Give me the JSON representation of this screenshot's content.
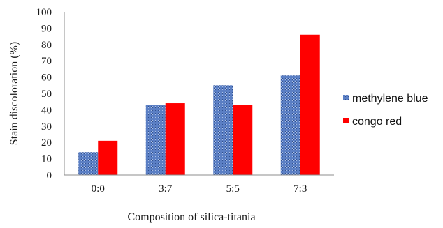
{
  "chart_data": {
    "type": "bar",
    "categories": [
      "0:0",
      "3:7",
      "5:5",
      "7:3"
    ],
    "series": [
      {
        "name": "methylene blue",
        "values": [
          14,
          43,
          55,
          61
        ],
        "color": "#4a6fb5",
        "pattern": "textured-dots"
      },
      {
        "name": "congo red",
        "values": [
          21,
          44,
          43,
          86
        ],
        "color": "#ff0000",
        "pattern": "solid"
      }
    ],
    "title": "",
    "xlabel": "Composition of silica-titania",
    "ylabel": "Stain discoloration (%)",
    "ylim": [
      0,
      100
    ],
    "yticks": [
      0,
      10,
      20,
      30,
      40,
      50,
      60,
      70,
      80,
      90,
      100
    ],
    "grid": false,
    "legend": "right"
  }
}
